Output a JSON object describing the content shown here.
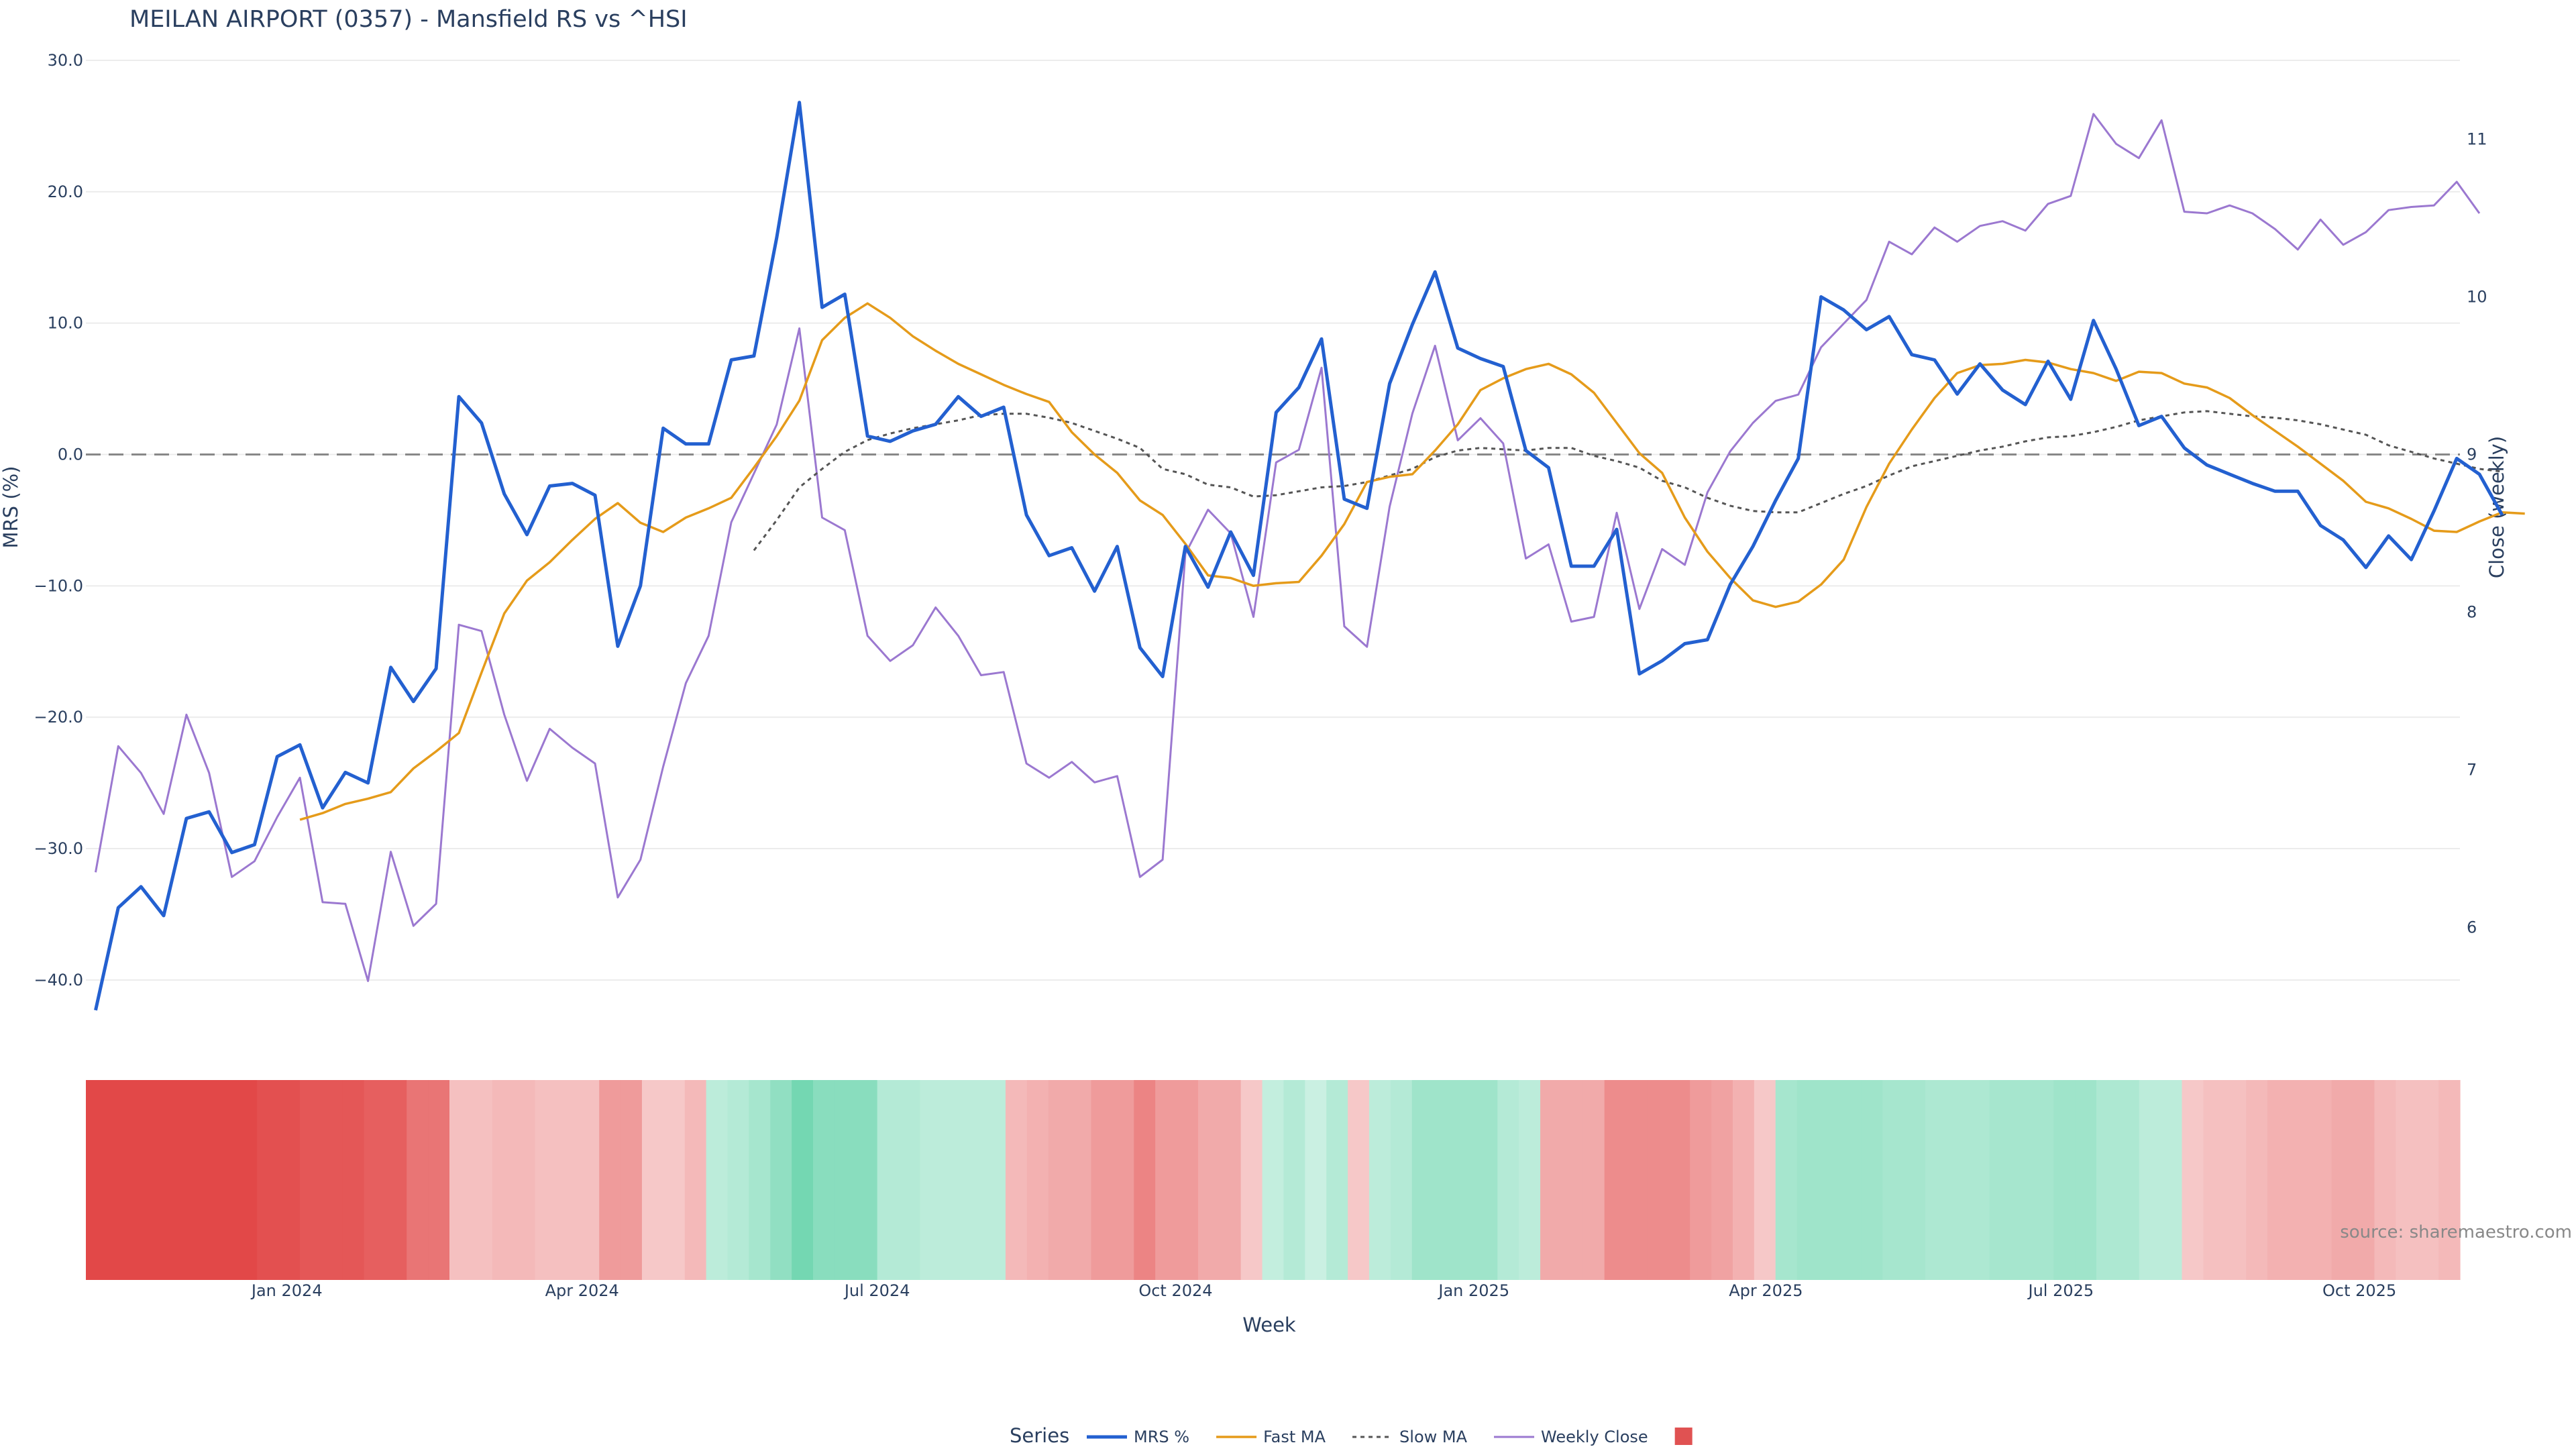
{
  "chart_data": {
    "type": "line",
    "title": "MEILAN AIRPORT (0357) - Mansfield RS vs ^HSI",
    "xlabel": "Week",
    "ylabel": "MRS (%)",
    "y2label": "Close (weekly)",
    "ylim": [
      -42,
      30
    ],
    "y2lim": [
      5.5,
      11.5
    ],
    "yticks": [
      "30.0",
      "20.0",
      "10.0",
      "0.0",
      "−10.0",
      "−20.0",
      "−30.0",
      "−40.0"
    ],
    "y2ticks": [
      "11",
      "10",
      "9",
      "8",
      "7",
      "6"
    ],
    "x_start": "2023-10-31",
    "x_end": "2025-11-01",
    "xticks": [
      {
        "date": "2024-01-01",
        "label": "Jan 2024"
      },
      {
        "date": "2024-04-01",
        "label": "Apr 2024"
      },
      {
        "date": "2024-07-01",
        "label": "Jul 2024"
      },
      {
        "date": "2024-10-01",
        "label": "Oct 2024"
      },
      {
        "date": "2025-01-01",
        "label": "Jan 2025"
      },
      {
        "date": "2025-04-01",
        "label": "Apr 2025"
      },
      {
        "date": "2025-07-01",
        "label": "Jul 2025"
      },
      {
        "date": "2025-10-01",
        "label": "Oct 2025"
      }
    ],
    "first_week": "2023-11-03",
    "week_days": 7,
    "zero_line": true,
    "grid": true,
    "legend_position": "bottom-center",
    "legend_title": "Series",
    "colors": {
      "mrs": "#2360d0",
      "fast": "#e59b1a",
      "slow": "#555555",
      "close": "#9b78d0",
      "zero": "#888888",
      "grid": "#ececec",
      "swatch": "#e05252"
    },
    "series": [
      {
        "name": "MRS %",
        "values": [
          -42.3,
          -34.5,
          -32.9,
          -35.1,
          -27.7,
          -27.2,
          -30.3,
          -29.7,
          -23.0,
          -22.1,
          -26.9,
          -24.2,
          -25.0,
          -16.2,
          -18.8,
          -16.3,
          4.4,
          2.4,
          -3.0,
          -6.1,
          -2.4,
          -2.2,
          -3.1,
          -14.6,
          -10.0,
          2.0,
          0.8,
          0.8,
          7.2,
          7.5,
          16.5,
          26.8,
          11.2,
          12.2,
          1.4,
          1.0,
          1.8,
          2.3,
          4.4,
          2.9,
          3.6,
          -4.6,
          -7.7,
          -7.1,
          -10.4,
          -7.0,
          -14.7,
          -16.9,
          -7.0,
          -10.1,
          -5.9,
          -9.2,
          3.2,
          5.1,
          8.8,
          -3.4,
          -4.1,
          5.4,
          9.9,
          13.9,
          8.1,
          7.3,
          6.7,
          0.3,
          -1.0,
          -8.5,
          -8.5,
          -5.7,
          -16.7,
          -15.7,
          -14.4,
          -14.1,
          -9.9,
          -7.0,
          -3.5,
          -0.3,
          12.0,
          11.0,
          9.5,
          10.5,
          7.6,
          7.2,
          4.6,
          6.9,
          4.9,
          3.8,
          7.1,
          4.2,
          10.2,
          6.5,
          2.2,
          2.9,
          0.5,
          -0.8,
          -1.5,
          -2.2,
          -2.8,
          -2.8,
          -5.4,
          -6.5,
          -8.6,
          -6.2,
          -8.0,
          -4.3,
          -0.3,
          -1.5,
          -4.6
        ]
      },
      {
        "name": "Fast MA",
        "values": [
          null,
          null,
          null,
          null,
          null,
          null,
          null,
          null,
          null,
          -27.8,
          -27.3,
          -26.6,
          -26.2,
          -25.7,
          -23.9,
          -22.6,
          -21.2,
          -16.6,
          -12.1,
          -9.6,
          -8.2,
          -6.5,
          -4.9,
          -3.7,
          -5.2,
          -5.9,
          -4.8,
          -4.1,
          -3.3,
          -1.0,
          1.4,
          4.1,
          8.7,
          10.4,
          11.5,
          10.4,
          9.0,
          7.9,
          6.9,
          6.1,
          5.3,
          4.6,
          4.0,
          1.7,
          0.0,
          -1.4,
          -3.5,
          -4.6,
          -6.8,
          -9.2,
          -9.4,
          -10.0,
          -9.8,
          -9.7,
          -7.7,
          -5.3,
          -2.1,
          -1.7,
          -1.5,
          0.3,
          2.3,
          4.9,
          5.8,
          6.5,
          6.9,
          6.1,
          4.7,
          2.4,
          0.1,
          -1.4,
          -4.8,
          -7.4,
          -9.4,
          -11.1,
          -11.6,
          -11.2,
          -9.9,
          -8.0,
          -4.0,
          -0.7,
          1.9,
          4.3,
          6.2,
          6.8,
          6.9,
          7.2,
          7.0,
          6.5,
          6.2,
          5.6,
          6.3,
          6.2,
          5.4,
          5.1,
          4.3,
          3.0,
          1.8,
          0.6,
          -0.7,
          -2.0,
          -3.6,
          -4.1,
          -4.9,
          -5.8,
          -5.9,
          -5.1,
          -4.4,
          -4.5
        ]
      },
      {
        "name": "Slow MA",
        "values": [
          null,
          null,
          null,
          null,
          null,
          null,
          null,
          null,
          null,
          null,
          null,
          null,
          null,
          null,
          null,
          null,
          null,
          null,
          null,
          null,
          null,
          null,
          null,
          null,
          null,
          null,
          null,
          null,
          null,
          -7.3,
          -5.0,
          -2.5,
          -1.1,
          0.2,
          1.1,
          1.6,
          2.0,
          2.3,
          2.6,
          3.0,
          3.1,
          3.1,
          2.8,
          2.4,
          1.8,
          1.2,
          0.5,
          -1.1,
          -1.5,
          -2.3,
          -2.5,
          -3.2,
          -3.1,
          -2.8,
          -2.5,
          -2.4,
          -2.1,
          -1.6,
          -1.1,
          -0.2,
          0.3,
          0.5,
          0.4,
          0.3,
          0.5,
          0.5,
          -0.1,
          -0.5,
          -1.0,
          -2.0,
          -2.5,
          -3.3,
          -3.9,
          -4.3,
          -4.4,
          -4.4,
          -3.7,
          -3.0,
          -2.4,
          -1.6,
          -0.9,
          -0.5,
          -0.1,
          0.3,
          0.6,
          1.0,
          1.3,
          1.4,
          1.7,
          2.1,
          2.6,
          2.9,
          3.2,
          3.3,
          3.1,
          2.9,
          2.8,
          2.6,
          2.3,
          1.9,
          1.5,
          0.7,
          0.2,
          -0.3,
          -0.7,
          -1.1,
          -1.3
        ]
      },
      {
        "name": "Weekly Close",
        "axis": "right",
        "values": [
          6.35,
          7.15,
          6.98,
          6.72,
          7.35,
          6.98,
          6.32,
          6.42,
          6.7,
          6.95,
          6.16,
          6.15,
          5.66,
          6.48,
          6.01,
          6.15,
          7.92,
          7.88,
          7.35,
          6.93,
          7.26,
          7.14,
          7.04,
          6.19,
          6.43,
          7.02,
          7.55,
          7.85,
          8.57,
          8.88,
          9.19,
          9.8,
          8.6,
          8.52,
          7.85,
          7.69,
          7.79,
          8.03,
          7.85,
          7.6,
          7.62,
          7.04,
          6.95,
          7.05,
          6.92,
          6.96,
          6.32,
          6.43,
          8.37,
          8.65,
          8.5,
          7.97,
          8.95,
          9.03,
          9.55,
          7.91,
          7.78,
          8.67,
          9.26,
          9.69,
          9.09,
          9.23,
          9.07,
          8.34,
          8.43,
          7.94,
          7.97,
          8.63,
          8.02,
          8.4,
          8.3,
          8.76,
          9.02,
          9.2,
          9.34,
          9.38,
          9.68,
          9.83,
          9.98,
          10.35,
          10.27,
          10.44,
          10.35,
          10.45,
          10.48,
          10.42,
          10.59,
          10.64,
          11.16,
          10.97,
          10.88,
          11.12,
          10.54,
          10.53,
          10.58,
          10.53,
          10.43,
          10.3,
          10.49,
          10.33,
          10.41,
          10.55,
          10.57,
          10.58,
          10.73,
          10.53
        ]
      }
    ],
    "heatmap": {
      "values": [
        -1.0,
        -1.0,
        -1.0,
        -1.0,
        -1.0,
        -1.0,
        -1.0,
        -1.0,
        -0.95,
        -0.95,
        -0.9,
        -0.9,
        -0.9,
        -0.85,
        -0.85,
        -0.7,
        -0.7,
        -0.2,
        -0.2,
        -0.25,
        -0.25,
        -0.2,
        -0.2,
        -0.2,
        -0.45,
        -0.45,
        -0.15,
        -0.15,
        -0.25,
        0.25,
        0.3,
        0.4,
        0.55,
        0.75,
        0.6,
        0.6,
        0.6,
        0.3,
        0.3,
        0.25,
        0.25,
        0.25,
        0.25,
        -0.25,
        -0.3,
        -0.35,
        -0.35,
        -0.45,
        -0.45,
        -0.6,
        -0.45,
        -0.45,
        -0.35,
        -0.35,
        -0.15,
        0.2,
        0.3,
        0.15,
        0.3,
        -0.15,
        0.25,
        0.3,
        0.45,
        0.45,
        0.45,
        0.45,
        0.3,
        0.25,
        -0.35,
        -0.35,
        -0.35,
        -0.55,
        -0.55,
        -0.55,
        -0.55,
        -0.45,
        -0.4,
        -0.3,
        -0.15,
        0.4,
        0.45,
        0.45,
        0.45,
        0.45,
        0.4,
        0.4,
        0.35,
        0.35,
        0.35,
        0.4,
        0.4,
        0.4,
        0.45,
        0.45,
        0.35,
        0.35,
        0.25,
        0.25,
        -0.15,
        -0.2,
        -0.2,
        -0.25,
        -0.3,
        -0.3,
        -0.3,
        -0.35,
        -0.35,
        -0.25,
        -0.2,
        -0.2,
        -0.25
      ]
    },
    "source_label": "source: sharemaestro.com"
  }
}
